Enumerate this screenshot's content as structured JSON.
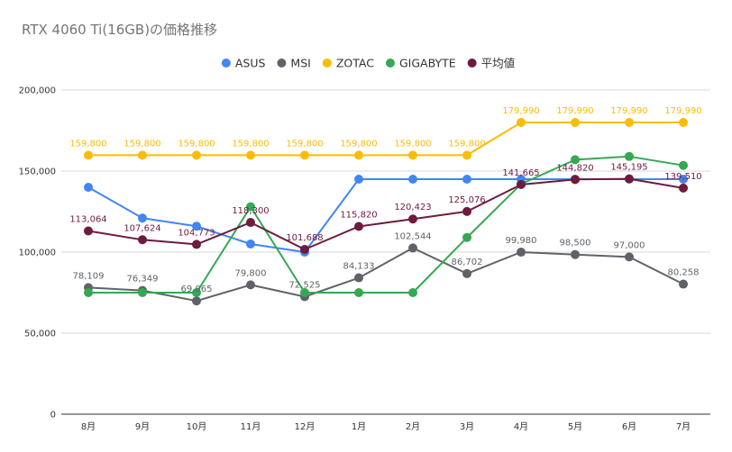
{
  "chart_data": {
    "type": "line",
    "title": "RTX 4060 Ti(16GB)の価格推移",
    "xlabel": "",
    "ylabel": "",
    "categories": [
      "8月",
      "9月",
      "10月",
      "11月",
      "12月",
      "1月",
      "2月",
      "3月",
      "4月",
      "5月",
      "6月",
      "7月"
    ],
    "ylim": [
      0,
      200000
    ],
    "yticks": [
      0,
      50000,
      100000,
      150000,
      200000
    ],
    "ytick_labels": [
      "0",
      "50,000",
      "100,000",
      "150,000",
      "200,000"
    ],
    "grid": true,
    "legend_position": "top",
    "series": [
      {
        "name": "ASUS",
        "color": "#4285F4",
        "values": [
          140000,
          121000,
          116000,
          105000,
          100000,
          145000,
          145000,
          145000,
          145000,
          145000,
          145000,
          145000
        ],
        "labels": []
      },
      {
        "name": "MSI",
        "color": "#5F6368",
        "values": [
          78109,
          76349,
          69865,
          79800,
          72525,
          84133,
          102544,
          86702,
          99980,
          98500,
          97000,
          80258
        ],
        "labels": [
          "78,109",
          "76,349",
          "69,865",
          "79,800",
          "72,525",
          "84,133",
          "102,544",
          "86,702",
          "99,980",
          "98,500",
          "97,000",
          "80,258"
        ]
      },
      {
        "name": "ZOTAC",
        "color": "#FBBC04",
        "values": [
          159800,
          159800,
          159800,
          159800,
          159800,
          159800,
          159800,
          159800,
          179990,
          179990,
          179990,
          179990
        ],
        "labels": [
          "159,800",
          "159,800",
          "159,800",
          "159,800",
          "159,800",
          "159,800",
          "159,800",
          "159,800",
          "179,990",
          "179,990",
          "179,990",
          "179,990"
        ]
      },
      {
        "name": "GIGABYTE",
        "color": "#34A853",
        "values": [
          75000,
          75000,
          75000,
          128000,
          75000,
          75000,
          75000,
          109000,
          142000,
          157000,
          159000,
          153500
        ],
        "labels": []
      },
      {
        "name": "平均値",
        "color": "#6D1B3F",
        "values": [
          113064,
          107624,
          104773,
          118300,
          101688,
          115820,
          120423,
          125076,
          141665,
          144820,
          145195,
          139510
        ],
        "labels": [
          "113,064",
          "107,624",
          "104,773",
          "118,300",
          "101,688",
          "115,820",
          "120,423",
          "125,076",
          "141,665",
          "144,820",
          "145,195",
          "139,510"
        ]
      }
    ]
  }
}
